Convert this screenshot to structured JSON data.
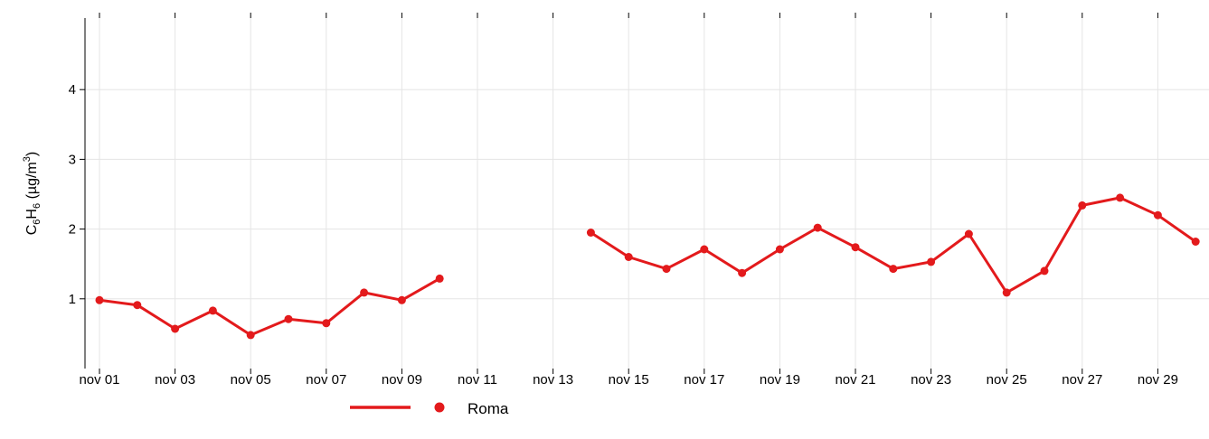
{
  "chart_data": {
    "type": "line",
    "ylabel": {
      "base1": "C",
      "sub1": "6",
      "base2": "H",
      "sub2": "6",
      "unit_prefix": " (µg/m",
      "unit_sup": "3",
      "unit_suffix": ")"
    },
    "ylim": [
      0,
      5
    ],
    "yticks": [
      1,
      2,
      3,
      4
    ],
    "xticks": [
      {
        "day": 1,
        "label": "nov 01"
      },
      {
        "day": 3,
        "label": "nov 03"
      },
      {
        "day": 5,
        "label": "nov 05"
      },
      {
        "day": 7,
        "label": "nov 07"
      },
      {
        "day": 9,
        "label": "nov 09"
      },
      {
        "day": 11,
        "label": "nov 11"
      },
      {
        "day": 13,
        "label": "nov 13"
      },
      {
        "day": 15,
        "label": "nov 15"
      },
      {
        "day": 17,
        "label": "nov 17"
      },
      {
        "day": 19,
        "label": "nov 19"
      },
      {
        "day": 21,
        "label": "nov 21"
      },
      {
        "day": 23,
        "label": "nov 23"
      },
      {
        "day": 25,
        "label": "nov 25"
      },
      {
        "day": 27,
        "label": "nov 27"
      },
      {
        "day": 29,
        "label": "nov 29"
      }
    ],
    "grid": true,
    "legend_position": "bottom",
    "series": [
      {
        "name": "Roma",
        "color": "#e31a1c",
        "x": [
          1,
          2,
          3,
          4,
          5,
          6,
          7,
          8,
          9,
          10,
          11,
          12,
          13,
          14,
          15,
          16,
          17,
          18,
          19,
          20,
          21,
          22,
          23,
          24,
          25,
          26,
          27,
          28,
          29,
          30
        ],
        "y": [
          0.98,
          0.91,
          0.57,
          0.83,
          0.48,
          0.71,
          0.65,
          1.09,
          0.98,
          1.29,
          null,
          null,
          null,
          1.95,
          1.6,
          1.43,
          1.71,
          1.37,
          1.71,
          2.02,
          1.74,
          1.43,
          1.53,
          1.93,
          1.09,
          1.4,
          2.34,
          2.45,
          2.2,
          1.82
        ]
      }
    ]
  }
}
